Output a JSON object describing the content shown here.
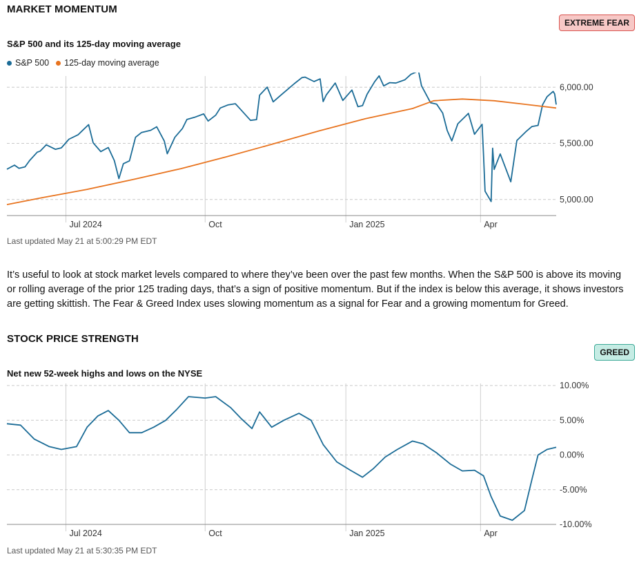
{
  "momentum": {
    "title": "MARKET MOMENTUM",
    "badge": "EXTREME FEAR",
    "badge_color": "#f7c8c6",
    "subtitle": "S&P 500 and its 125-day moving average",
    "legend": [
      {
        "label": "S&P 500",
        "color": "#1a6b96"
      },
      {
        "label": "125-day moving average",
        "color": "#e8731e"
      }
    ],
    "updated": "Last updated May 21 at 5:00:29 PM EDT"
  },
  "description": "It’s useful to look at stock market levels compared to where they’ve been over the past few months. When the S&P 500 is above its moving or rolling average of the prior 125 trading days, that’s a sign of positive momentum. But if the index is below this average, it shows investors are getting skittish. The Fear & Greed Index uses slowing momentum as a signal for Fear and a growing momentum for Greed.",
  "strength": {
    "title": "STOCK PRICE STRENGTH",
    "badge": "GREED",
    "badge_color": "#c5ece4",
    "subtitle": "Net new 52-week highs and lows on the NYSE",
    "updated": "Last updated May 21 at 5:30:35 PM EDT"
  },
  "chart_data": [
    {
      "type": "line",
      "title": "S&P 500 and its 125-day moving average",
      "x_range": [
        "2024-05-23",
        "2025-05-21"
      ],
      "x_ticks": [
        {
          "label": "Jul 2024",
          "date": "2024-07-01"
        },
        {
          "label": "Oct",
          "date": "2024-10-01"
        },
        {
          "label": "Jan 2025",
          "date": "2025-01-02"
        },
        {
          "label": "Apr",
          "date": "2025-04-01"
        }
      ],
      "y_ticks": [
        {
          "label": "5,000.00",
          "value": 5000
        },
        {
          "label": "5,500.00",
          "value": 5500
        },
        {
          "label": "6,000.00",
          "value": 6000
        }
      ],
      "ylim": [
        4900,
        6100
      ],
      "grid": true,
      "series": [
        {
          "name": "S&P 500",
          "color": "#1a6b96",
          "points": [
            [
              "2024-05-23",
              5270
            ],
            [
              "2024-05-28",
              5306
            ],
            [
              "2024-05-31",
              5278
            ],
            [
              "2024-06-04",
              5291
            ],
            [
              "2024-06-07",
              5347
            ],
            [
              "2024-06-12",
              5421
            ],
            [
              "2024-06-14",
              5431
            ],
            [
              "2024-06-18",
              5487
            ],
            [
              "2024-06-24",
              5447
            ],
            [
              "2024-06-28",
              5460
            ],
            [
              "2024-07-03",
              5537
            ],
            [
              "2024-07-09",
              5576
            ],
            [
              "2024-07-12",
              5615
            ],
            [
              "2024-07-16",
              5667
            ],
            [
              "2024-07-19",
              5505
            ],
            [
              "2024-07-24",
              5427
            ],
            [
              "2024-07-29",
              5463
            ],
            [
              "2024-08-02",
              5346
            ],
            [
              "2024-08-05",
              5186
            ],
            [
              "2024-08-08",
              5319
            ],
            [
              "2024-08-12",
              5344
            ],
            [
              "2024-08-16",
              5554
            ],
            [
              "2024-08-20",
              5597
            ],
            [
              "2024-08-26",
              5616
            ],
            [
              "2024-08-30",
              5648
            ],
            [
              "2024-09-04",
              5520
            ],
            [
              "2024-09-06",
              5408
            ],
            [
              "2024-09-11",
              5554
            ],
            [
              "2024-09-16",
              5633
            ],
            [
              "2024-09-19",
              5713
            ],
            [
              "2024-09-24",
              5732
            ],
            [
              "2024-09-30",
              5762
            ],
            [
              "2024-10-03",
              5699
            ],
            [
              "2024-10-08",
              5751
            ],
            [
              "2024-10-11",
              5815
            ],
            [
              "2024-10-16",
              5842
            ],
            [
              "2024-10-21",
              5853
            ],
            [
              "2024-10-24",
              5809
            ],
            [
              "2024-10-31",
              5705
            ],
            [
              "2024-11-04",
              5712
            ],
            [
              "2024-11-06",
              5929
            ],
            [
              "2024-11-11",
              6001
            ],
            [
              "2024-11-15",
              5870
            ],
            [
              "2024-11-19",
              5917
            ],
            [
              "2024-11-25",
              5987
            ],
            [
              "2024-11-29",
              6032
            ],
            [
              "2024-12-04",
              6086
            ],
            [
              "2024-12-06",
              6090
            ],
            [
              "2024-12-12",
              6051
            ],
            [
              "2024-12-16",
              6074
            ],
            [
              "2024-12-18",
              5872
            ],
            [
              "2024-12-20",
              5930
            ],
            [
              "2024-12-26",
              6037
            ],
            [
              "2024-12-31",
              5882
            ],
            [
              "2025-01-06",
              5975
            ],
            [
              "2025-01-10",
              5827
            ],
            [
              "2025-01-13",
              5836
            ],
            [
              "2025-01-16",
              5937
            ],
            [
              "2025-01-21",
              6049
            ],
            [
              "2025-01-24",
              6101
            ],
            [
              "2025-01-27",
              6012
            ],
            [
              "2025-01-31",
              6041
            ],
            [
              "2025-02-04",
              6037
            ],
            [
              "2025-02-10",
              6066
            ],
            [
              "2025-02-14",
              6115
            ],
            [
              "2025-02-19",
              6144
            ],
            [
              "2025-02-21",
              6013
            ],
            [
              "2025-02-27",
              5861
            ],
            [
              "2025-03-03",
              5849
            ],
            [
              "2025-03-07",
              5770
            ],
            [
              "2025-03-10",
              5614
            ],
            [
              "2025-03-13",
              5522
            ],
            [
              "2025-03-17",
              5675
            ],
            [
              "2025-03-24",
              5767
            ],
            [
              "2025-03-28",
              5581
            ],
            [
              "2025-04-02",
              5670
            ],
            [
              "2025-04-03",
              5397
            ],
            [
              "2025-04-04",
              5074
            ],
            [
              "2025-04-08",
              4982
            ],
            [
              "2025-04-09",
              5457
            ],
            [
              "2025-04-10",
              5268
            ],
            [
              "2025-04-14",
              5406
            ],
            [
              "2025-04-21",
              5158
            ],
            [
              "2025-04-25",
              5525
            ],
            [
              "2025-05-01",
              5604
            ],
            [
              "2025-05-05",
              5650
            ],
            [
              "2025-05-09",
              5660
            ],
            [
              "2025-05-12",
              5844
            ],
            [
              "2025-05-15",
              5916
            ],
            [
              "2025-05-19",
              5963
            ],
            [
              "2025-05-20",
              5940
            ],
            [
              "2025-05-21",
              5845
            ]
          ]
        },
        {
          "name": "125-day moving average",
          "color": "#e8731e",
          "points": [
            [
              "2024-05-23",
              4955
            ],
            [
              "2024-06-15",
              5015
            ],
            [
              "2024-07-15",
              5090
            ],
            [
              "2024-08-15",
              5180
            ],
            [
              "2024-09-15",
              5275
            ],
            [
              "2024-10-15",
              5380
            ],
            [
              "2024-11-15",
              5495
            ],
            [
              "2024-12-15",
              5610
            ],
            [
              "2025-01-15",
              5720
            ],
            [
              "2025-02-15",
              5810
            ],
            [
              "2025-03-01",
              5880
            ],
            [
              "2025-03-20",
              5895
            ],
            [
              "2025-04-10",
              5880
            ],
            [
              "2025-04-30",
              5848
            ],
            [
              "2025-05-21",
              5815
            ]
          ]
        }
      ]
    },
    {
      "type": "line",
      "title": "Net new 52-week highs and lows on the NYSE",
      "x_range": [
        "2024-05-23",
        "2025-05-21"
      ],
      "x_ticks": [
        {
          "label": "Jul 2024",
          "date": "2024-07-01"
        },
        {
          "label": "Oct",
          "date": "2024-10-01"
        },
        {
          "label": "Jan 2025",
          "date": "2025-01-02"
        },
        {
          "label": "Apr",
          "date": "2025-04-01"
        }
      ],
      "y_ticks": [
        {
          "label": "-10.00%",
          "value": -10
        },
        {
          "label": "-5.00%",
          "value": -5
        },
        {
          "label": "0.00%",
          "value": 0
        },
        {
          "label": "5.00%",
          "value": 5
        },
        {
          "label": "10.00%",
          "value": 10
        }
      ],
      "ylim": [
        -10,
        10
      ],
      "grid": true,
      "series": [
        {
          "name": "Net new 52-week highs and lows",
          "color": "#1a6b96",
          "points": [
            [
              "2024-05-23",
              4.5
            ],
            [
              "2024-06-01",
              4.3
            ],
            [
              "2024-06-10",
              2.3
            ],
            [
              "2024-06-20",
              1.2
            ],
            [
              "2024-06-28",
              0.8
            ],
            [
              "2024-07-08",
              1.2
            ],
            [
              "2024-07-15",
              4.0
            ],
            [
              "2024-07-22",
              5.6
            ],
            [
              "2024-07-29",
              6.4
            ],
            [
              "2024-08-05",
              5.0
            ],
            [
              "2024-08-12",
              3.2
            ],
            [
              "2024-08-20",
              3.2
            ],
            [
              "2024-08-28",
              4.0
            ],
            [
              "2024-09-05",
              5.0
            ],
            [
              "2024-09-12",
              6.5
            ],
            [
              "2024-09-20",
              8.4
            ],
            [
              "2024-10-01",
              8.2
            ],
            [
              "2024-10-08",
              8.4
            ],
            [
              "2024-10-18",
              6.8
            ],
            [
              "2024-10-25",
              5.2
            ],
            [
              "2024-11-01",
              3.8
            ],
            [
              "2024-11-06",
              6.2
            ],
            [
              "2024-11-14",
              4.0
            ],
            [
              "2024-11-22",
              5.0
            ],
            [
              "2024-12-02",
              6.0
            ],
            [
              "2024-12-10",
              5.0
            ],
            [
              "2024-12-18",
              1.5
            ],
            [
              "2024-12-27",
              -1.0
            ],
            [
              "2025-01-05",
              -2.2
            ],
            [
              "2025-01-13",
              -3.2
            ],
            [
              "2025-01-20",
              -2.0
            ],
            [
              "2025-01-28",
              -0.3
            ],
            [
              "2025-02-05",
              0.8
            ],
            [
              "2025-02-15",
              2.0
            ],
            [
              "2025-02-22",
              1.6
            ],
            [
              "2025-03-03",
              0.3
            ],
            [
              "2025-03-12",
              -1.3
            ],
            [
              "2025-03-20",
              -2.3
            ],
            [
              "2025-03-28",
              -2.2
            ],
            [
              "2025-04-03",
              -3.0
            ],
            [
              "2025-04-08",
              -6.0
            ],
            [
              "2025-04-14",
              -8.8
            ],
            [
              "2025-04-22",
              -9.4
            ],
            [
              "2025-04-30",
              -8.0
            ],
            [
              "2025-05-05",
              -3.5
            ],
            [
              "2025-05-09",
              0.0
            ],
            [
              "2025-05-15",
              0.8
            ],
            [
              "2025-05-21",
              1.1
            ]
          ]
        }
      ]
    }
  ]
}
